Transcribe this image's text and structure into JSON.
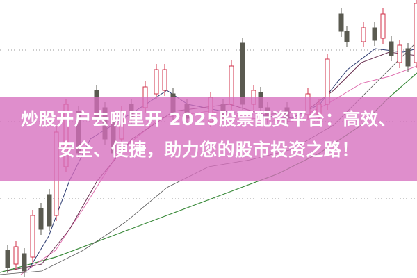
{
  "title_line1": "炒股开户去哪里开 2025股票配资平台：高效、",
  "title_line2": "安全、便捷，助力您的股市投资之路！",
  "colors": {
    "band": "#e08fcc",
    "up": "#d0304a",
    "down": "#5a5a50",
    "ma_green": "#3a8a3a",
    "ma_navy": "#2b3a70",
    "ma_pink": "#e070b0",
    "title_text": "#ffffff"
  }
}
